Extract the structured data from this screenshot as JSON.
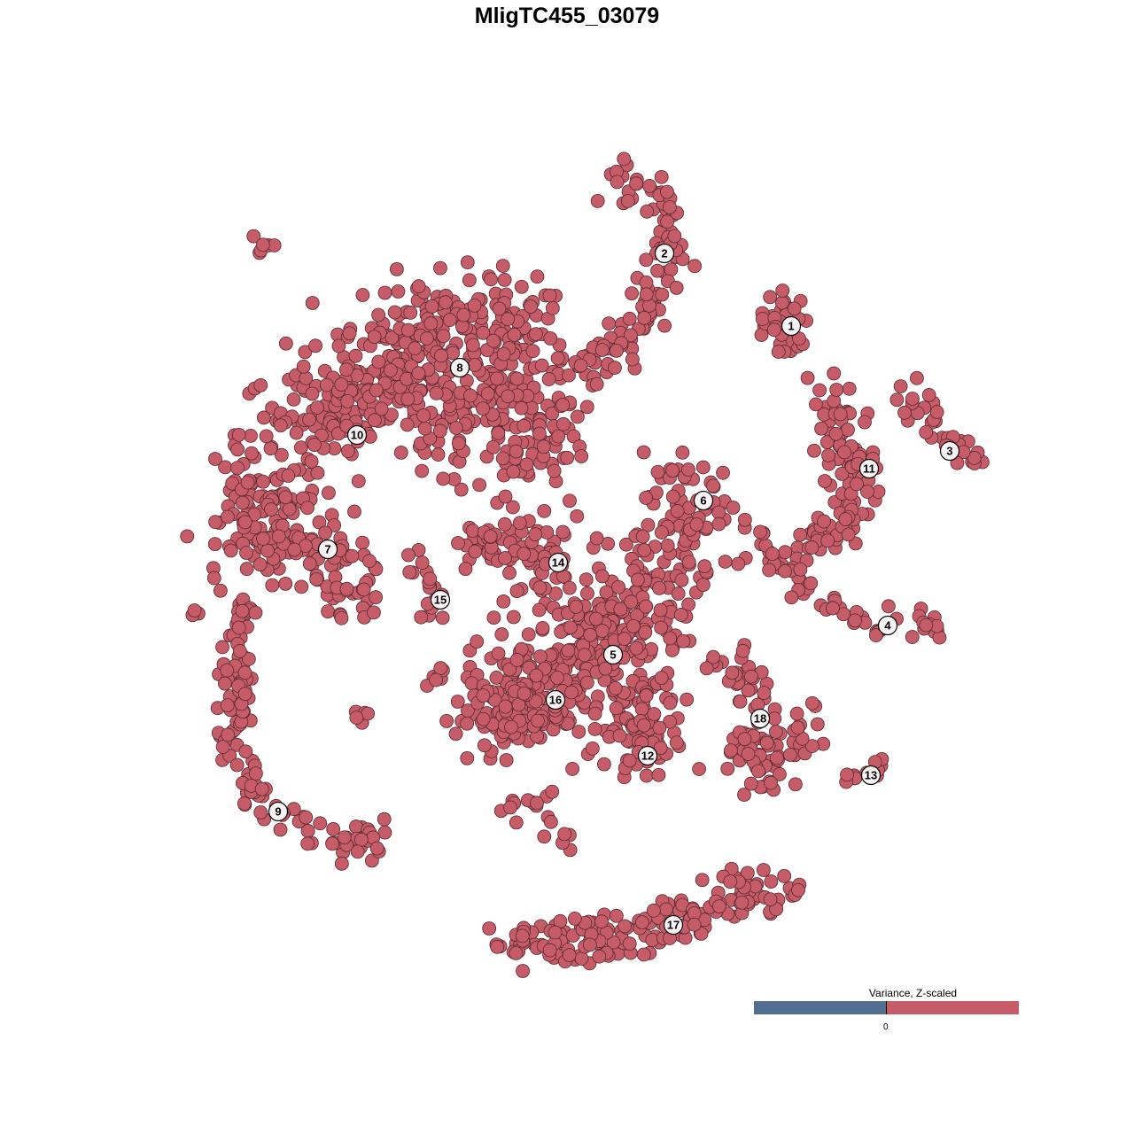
{
  "chart_data": {
    "type": "scatter",
    "title": "MligTC455_03079",
    "xlabel": "",
    "ylabel": "",
    "xlim": [
      -64,
      64
    ],
    "ylim": [
      -64,
      64
    ],
    "grid": false,
    "point_color": "#c65c68",
    "point_stroke": "#5a2a30",
    "legend": {
      "title": "Variance, Z-scaled",
      "placement": "bottom-right",
      "low_color": "#526e91",
      "high_color": "#c65c68",
      "tick_label": "0"
    },
    "clusters": [
      {
        "label": "1",
        "label_pos": [
          25.3,
          27.2
        ],
        "n": 40,
        "spread": 1.6,
        "path": [
          [
            23,
            29
          ],
          [
            25,
            27.5
          ],
          [
            24,
            26
          ]
        ]
      },
      {
        "label": "2",
        "label_pos": [
          11,
          35.4
        ],
        "n": 110,
        "spread": 1.3,
        "path": [
          [
            5,
            44.5
          ],
          [
            10,
            42.5
          ],
          [
            12,
            37
          ],
          [
            11,
            32
          ],
          [
            8,
            28
          ],
          [
            6,
            24
          ],
          [
            2.5,
            22.5
          ]
        ]
      },
      {
        "label": "3",
        "label_pos": [
          43.2,
          13.1
        ],
        "n": 35,
        "spread": 0.9,
        "path": [
          [
            38.5,
            19.5
          ],
          [
            40.5,
            17.5
          ],
          [
            42,
            14
          ],
          [
            46.5,
            12.2
          ]
        ]
      },
      {
        "label": "11",
        "label_pos": [
          34.1,
          11.1
        ],
        "n": 110,
        "spread": 1.1,
        "path": [
          [
            29,
            20.5
          ],
          [
            31,
            17
          ],
          [
            30.5,
            13
          ],
          [
            33.5,
            12
          ],
          [
            32.5,
            7
          ],
          [
            30.5,
            4
          ],
          [
            27,
            2.5
          ]
        ]
      },
      {
        "label": "4",
        "label_pos": [
          36.2,
          -6.6
        ],
        "n": 60,
        "spread": 0.8,
        "path": [
          [
            21.5,
            4
          ],
          [
            24,
            0
          ],
          [
            28,
            -3.5
          ],
          [
            33,
            -6
          ],
          [
            37,
            -7.5
          ],
          [
            42,
            -6.5
          ]
        ]
      },
      {
        "label": "6",
        "label_pos": [
          15.4,
          7.5
        ],
        "n": 110,
        "spread": 2.6,
        "path": [
          [
            13,
            10
          ],
          [
            15,
            8
          ],
          [
            14,
            5
          ],
          [
            12,
            3
          ],
          [
            10,
            -2
          ]
        ]
      },
      {
        "label": "8",
        "label_pos": [
          -12.1,
          22.5
        ],
        "n": 330,
        "spread": 3.2,
        "path": [
          [
            -24,
            22
          ],
          [
            -17,
            26.5
          ],
          [
            -9,
            28
          ],
          [
            -4,
            25
          ],
          [
            -4,
            19
          ],
          [
            -5,
            11
          ]
        ]
      },
      {
        "label": "10",
        "label_pos": [
          -23.7,
          14.9
        ],
        "n": 260,
        "spread": 3.3,
        "path": [
          [
            -34,
            8
          ],
          [
            -31,
            16
          ],
          [
            -24,
            19
          ],
          [
            -15,
            19
          ],
          [
            -10,
            17
          ]
        ]
      },
      {
        "label": "7",
        "label_pos": [
          -27,
          2
        ],
        "n": 150,
        "spread": 2.2,
        "path": [
          [
            -35,
            8
          ],
          [
            -35,
            2
          ],
          [
            -28,
            3
          ],
          [
            -26,
            0
          ],
          [
            -24,
            -5
          ]
        ]
      },
      {
        "label": "9",
        "label_pos": [
          -32.6,
          -27.6
        ],
        "n": 130,
        "spread": 1.0,
        "path": [
          [
            -36.5,
            -4
          ],
          [
            -37.5,
            -14
          ],
          [
            -37,
            -22
          ],
          [
            -34,
            -27
          ],
          [
            -29,
            -30
          ],
          [
            -24,
            -32
          ],
          [
            -21,
            -29
          ]
        ]
      },
      {
        "label": "15",
        "label_pos": [
          -14.3,
          -3.7
        ],
        "n": 20,
        "spread": 0.6,
        "path": [
          [
            -18,
            1.5
          ],
          [
            -14.5,
            -2
          ],
          [
            -16,
            -6.5
          ]
        ]
      },
      {
        "label": "14",
        "label_pos": [
          -1,
          0.5
        ],
        "n": 70,
        "spread": 1.4,
        "path": [
          [
            -11,
            3
          ],
          [
            -4,
            3
          ],
          [
            -2,
            -1
          ]
        ]
      },
      {
        "label": "5",
        "label_pos": [
          5.2,
          -9.9
        ],
        "n": 280,
        "spread": 4.2,
        "path": [
          [
            3,
            -5
          ],
          [
            5,
            -10
          ],
          [
            6,
            -14
          ]
        ]
      },
      {
        "label": "16",
        "label_pos": [
          -1.3,
          -15
        ],
        "n": 150,
        "spread": 2.3,
        "path": [
          [
            -8,
            -12
          ],
          [
            -1.5,
            -15
          ],
          [
            -11,
            -18
          ]
        ]
      },
      {
        "label": "12",
        "label_pos": [
          9.1,
          -21.3
        ],
        "n": 60,
        "spread": 1.8,
        "path": [
          [
            8,
            -17
          ],
          [
            9,
            -22
          ]
        ]
      },
      {
        "label": "18",
        "label_pos": [
          21.8,
          -17.1
        ],
        "n": 100,
        "spread": 1.3,
        "path": [
          [
            16,
            -11
          ],
          [
            21,
            -13
          ],
          [
            22,
            -16
          ],
          [
            20,
            -21
          ],
          [
            21,
            -24
          ],
          [
            26,
            -21
          ],
          [
            27,
            -16
          ]
        ]
      },
      {
        "label": "13",
        "label_pos": [
          34.3,
          -23.5
        ],
        "n": 12,
        "spread": 0.6,
        "path": [
          [
            32,
            -24
          ],
          [
            37,
            -22
          ]
        ]
      },
      {
        "label": "17",
        "label_pos": [
          12,
          -40.4
        ],
        "n": 170,
        "spread": 1.4,
        "path": [
          [
            -6.5,
            -42.5
          ],
          [
            4,
            -42
          ],
          [
            12,
            -40
          ],
          [
            19,
            -37
          ],
          [
            25.5,
            -37
          ]
        ]
      },
      {
        "label": "",
        "n": 6,
        "spread": 0.5,
        "path": [
          [
            -35,
            37
          ],
          [
            -34,
            36
          ]
        ]
      },
      {
        "label": "",
        "n": 4,
        "spread": 0.4,
        "path": [
          [
            -42,
            -5
          ]
        ]
      },
      {
        "label": "",
        "n": 5,
        "spread": 0.5,
        "path": [
          [
            -23,
            -16.5
          ]
        ]
      },
      {
        "label": "",
        "n": 7,
        "spread": 0.6,
        "path": [
          [
            -15,
            -12
          ]
        ]
      },
      {
        "label": "",
        "n": 14,
        "spread": 0.8,
        "path": [
          [
            -8,
            -27
          ],
          [
            -2,
            -26
          ],
          [
            -2,
            -29
          ]
        ]
      },
      {
        "label": "",
        "n": 4,
        "spread": 0.5,
        "path": [
          [
            0.5,
            -31
          ]
        ]
      }
    ]
  }
}
